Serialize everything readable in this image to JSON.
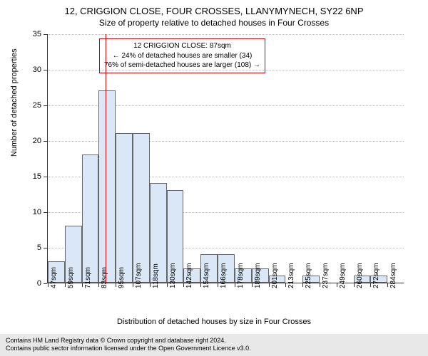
{
  "title_main": "12, CRIGGION CLOSE, FOUR CROSSES, LLANYMYNECH, SY22 6NP",
  "title_sub": "Size of property relative to detached houses in Four Crosses",
  "ylabel": "Number of detached properties",
  "xlabel": "Distribution of detached houses by size in Four Crosses",
  "chart": {
    "type": "histogram",
    "x_categories": [
      "47sqm",
      "59sqm",
      "71sqm",
      "83sqm",
      "95sqm",
      "107sqm",
      "118sqm",
      "130sqm",
      "142sqm",
      "154sqm",
      "166sqm",
      "178sqm",
      "189sqm",
      "201sqm",
      "213sqm",
      "225sqm",
      "237sqm",
      "249sqm",
      "260sqm",
      "272sqm",
      "284sqm"
    ],
    "values": [
      3,
      8,
      18,
      27,
      21,
      21,
      14,
      13,
      2,
      4,
      4,
      2,
      2,
      1,
      0,
      1,
      0,
      0,
      1,
      1,
      0
    ],
    "ylim": [
      0,
      35
    ],
    "ytick_step": 5,
    "bar_fill": "#d9e7f7",
    "bar_border": "#666666",
    "grid_color": "#bbbbbb",
    "background_color": "#ffffff",
    "marker_index": 3.4,
    "marker_color": "#cc0000",
    "annotation": {
      "lines": [
        "12 CRIGGION CLOSE: 87sqm",
        "← 24% of detached houses are smaller (34)",
        "76% of semi-detached houses are larger (108) →"
      ],
      "border_color": "#cc0000"
    }
  },
  "footer": {
    "line1": "Contains HM Land Registry data © Crown copyright and database right 2024.",
    "line2": "Contains public sector information licensed under the Open Government Licence v3.0.",
    "background": "#e8e8e8"
  }
}
